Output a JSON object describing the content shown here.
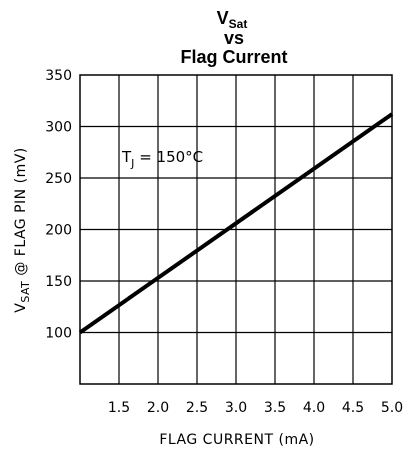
{
  "chart_data": {
    "type": "line",
    "title_main": "V",
    "title_sub": "Sat",
    "title_line2": "vs",
    "title_line3": "Flag Current",
    "xlabel": "FLAG CURRENT (mA)",
    "ylabel_main": "V",
    "ylabel_sub": "SAT",
    "ylabel_rest": " @ FLAG PIN (mV)",
    "xlim": [
      1.0,
      5.0
    ],
    "ylim": [
      50,
      350
    ],
    "x_ticks": [
      1.5,
      2.0,
      2.5,
      3.0,
      3.5,
      4.0,
      4.5,
      5.0
    ],
    "x_tick_labels": [
      "1.5",
      "2.0",
      "2.5",
      "3.0",
      "3.5",
      "4.0",
      "4.5",
      "5.0"
    ],
    "y_ticks": [
      100,
      150,
      200,
      250,
      300,
      350
    ],
    "y_tick_labels": [
      "100",
      "150",
      "200",
      "250",
      "300",
      "350"
    ],
    "grid": true,
    "annotation": {
      "main": "T",
      "sub": "J",
      "rest": " = 150°C"
    },
    "series": [
      {
        "x": [
          1.0,
          5.0
        ],
        "y": [
          100,
          312
        ]
      }
    ]
  }
}
